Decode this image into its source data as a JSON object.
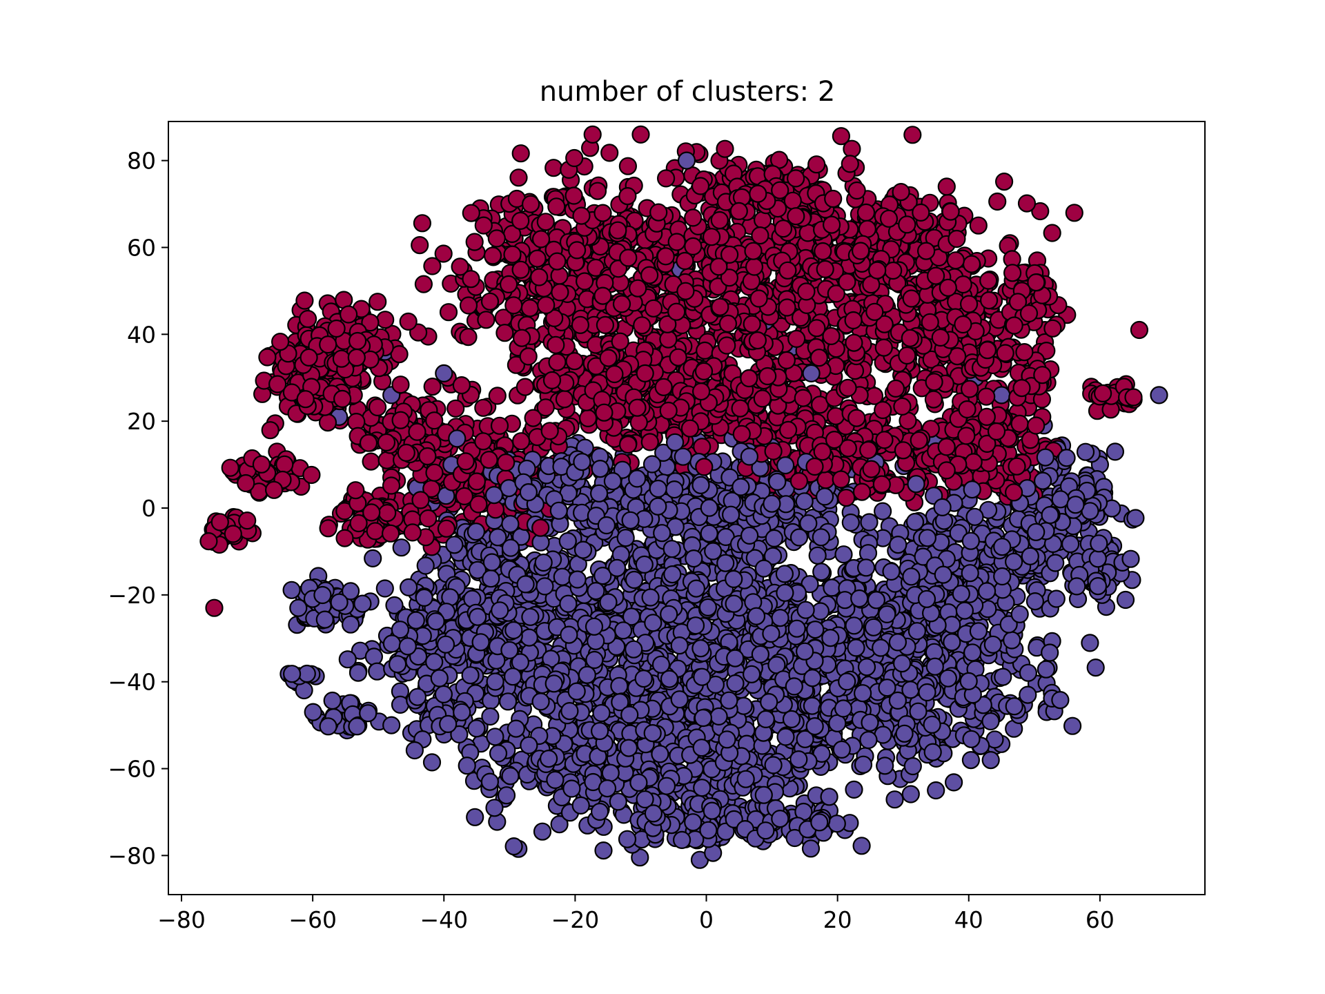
{
  "chart_data": {
    "type": "scatter",
    "title": "number of clusters: 2",
    "xlabel": "",
    "ylabel": "",
    "xlim": [
      -82,
      76
    ],
    "ylim": [
      -89,
      89
    ],
    "xticks": [
      -80,
      -60,
      -40,
      -20,
      0,
      20,
      40,
      60
    ],
    "yticks": [
      -80,
      -60,
      -40,
      -20,
      0,
      20,
      40,
      60,
      80
    ],
    "xtick_labels": [
      "−80",
      "−60",
      "−40",
      "−20",
      "0",
      "20",
      "40",
      "60"
    ],
    "ytick_labels": [
      "−80",
      "−60",
      "−40",
      "−20",
      "0",
      "20",
      "40",
      "60",
      "80"
    ],
    "grid": false,
    "legend": "none",
    "marker_edge_color": "#000000",
    "series": [
      {
        "cluster": 0,
        "color": "#9e0142",
        "regions": [
          {
            "cx": 5,
            "cy": 48,
            "rx": 34,
            "ry": 26,
            "n": 950
          },
          {
            "cx": -20,
            "cy": 55,
            "rx": 16,
            "ry": 18,
            "n": 260
          },
          {
            "cx": 22,
            "cy": 62,
            "rx": 14,
            "ry": 12,
            "n": 160
          },
          {
            "cx": 8,
            "cy": 74,
            "rx": 10,
            "ry": 6,
            "n": 90
          },
          {
            "cx": 38,
            "cy": 42,
            "rx": 12,
            "ry": 16,
            "n": 200
          },
          {
            "cx": 42,
            "cy": 14,
            "rx": 10,
            "ry": 10,
            "n": 140
          },
          {
            "cx": 20,
            "cy": 12,
            "rx": 14,
            "ry": 9,
            "n": 160
          },
          {
            "cx": -5,
            "cy": 24,
            "rx": 22,
            "ry": 10,
            "n": 240
          },
          {
            "cx": -36,
            "cy": 8,
            "rx": 12,
            "ry": 14,
            "n": 190
          },
          {
            "cx": -55,
            "cy": 38,
            "rx": 7,
            "ry": 8,
            "n": 110
          },
          {
            "cx": -60,
            "cy": 30,
            "rx": 6,
            "ry": 10,
            "n": 100
          },
          {
            "cx": -47,
            "cy": 18,
            "rx": 6,
            "ry": 7,
            "n": 70
          },
          {
            "cx": -50,
            "cy": -2,
            "rx": 7,
            "ry": 6,
            "n": 70
          },
          {
            "cx": -67,
            "cy": 8,
            "rx": 5,
            "ry": 4,
            "n": 60
          },
          {
            "cx": -73,
            "cy": -5,
            "rx": 3,
            "ry": 3,
            "n": 25
          },
          {
            "cx": 50,
            "cy": 50,
            "rx": 4,
            "ry": 10,
            "n": 40
          },
          {
            "cx": 50,
            "cy": 30,
            "rx": 3,
            "ry": 5,
            "n": 20
          },
          {
            "cx": 62,
            "cy": 26,
            "rx": 4,
            "ry": 3,
            "n": 25
          }
        ],
        "points": [
          [
            -75,
            -23
          ],
          [
            66,
            41
          ],
          [
            34,
            66
          ],
          [
            2,
            80
          ]
        ]
      },
      {
        "cluster": 1,
        "color": "#5e4fa2",
        "regions": [
          {
            "cx": 2,
            "cy": -30,
            "rx": 38,
            "ry": 28,
            "n": 1300
          },
          {
            "cx": -8,
            "cy": -58,
            "rx": 24,
            "ry": 15,
            "n": 380
          },
          {
            "cx": 30,
            "cy": -40,
            "rx": 20,
            "ry": 18,
            "n": 320
          },
          {
            "cx": 42,
            "cy": -15,
            "rx": 12,
            "ry": 15,
            "n": 220
          },
          {
            "cx": 55,
            "cy": 0,
            "rx": 7,
            "ry": 13,
            "n": 140
          },
          {
            "cx": -32,
            "cy": -20,
            "rx": 12,
            "ry": 22,
            "n": 260
          },
          {
            "cx": -44,
            "cy": -30,
            "rx": 7,
            "ry": 10,
            "n": 80
          },
          {
            "cx": 0,
            "cy": 2,
            "rx": 20,
            "ry": 10,
            "n": 260
          },
          {
            "cx": -20,
            "cy": 5,
            "rx": 10,
            "ry": 8,
            "n": 110
          },
          {
            "cx": -58,
            "cy": -22,
            "rx": 5,
            "ry": 5,
            "n": 60
          },
          {
            "cx": -55,
            "cy": -48,
            "rx": 4,
            "ry": 4,
            "n": 25
          },
          {
            "cx": -61,
            "cy": -39,
            "rx": 2,
            "ry": 2,
            "n": 10
          },
          {
            "cx": -40,
            "cy": -48,
            "rx": 4,
            "ry": 5,
            "n": 40
          },
          {
            "cx": 5,
            "cy": -72,
            "rx": 16,
            "ry": 5,
            "n": 120
          },
          {
            "cx": 60,
            "cy": -15,
            "rx": 4,
            "ry": 6,
            "n": 40
          }
        ],
        "points": [
          [
            69,
            26
          ],
          [
            -4,
            55
          ],
          [
            2,
            46
          ],
          [
            9,
            43
          ],
          [
            13,
            37
          ],
          [
            -9,
            35
          ],
          [
            -49,
            36
          ],
          [
            -40,
            31
          ],
          [
            -56,
            21
          ],
          [
            -38,
            16
          ],
          [
            28,
            16
          ],
          [
            -5,
            21
          ],
          [
            30,
            30
          ],
          [
            41,
            30
          ],
          [
            45,
            26
          ],
          [
            16,
            31
          ],
          [
            12,
            26
          ],
          [
            -48,
            26
          ],
          [
            35,
            15
          ],
          [
            4,
            16
          ],
          [
            -12,
            15
          ],
          [
            22,
            -1
          ],
          [
            60,
            10
          ],
          [
            -3,
            80
          ],
          [
            -1,
            -81
          ],
          [
            35,
            -65
          ],
          [
            -48,
            -50
          ],
          [
            49,
            -43
          ]
        ]
      }
    ]
  }
}
